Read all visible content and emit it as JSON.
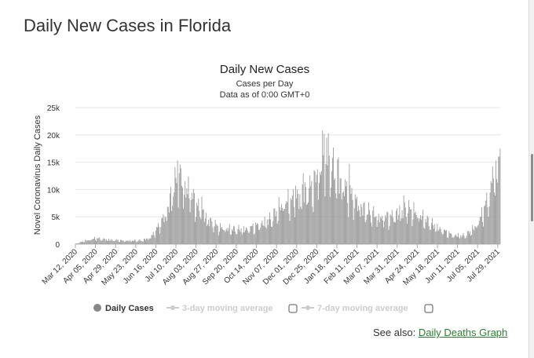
{
  "page_title": "Daily New Cases in Florida",
  "see_also": {
    "prefix": "See also:",
    "link_label": "Daily Deaths Graph"
  },
  "colors": {
    "bar": "#999999",
    "legend_inactive": "#cccccc",
    "link": "#2e7d32",
    "grid": "#e6e6e6"
  },
  "chart_data": {
    "type": "bar",
    "title": "Daily New Cases",
    "subtitle": "Cases per Day",
    "subtitle2": "Data as of 0:00 GMT+0",
    "ylabel": "Novel Coronavirus Daily Cases",
    "xlabel": "",
    "ylim": [
      0,
      25000
    ],
    "yticks": [
      0,
      5000,
      10000,
      15000,
      20000,
      25000
    ],
    "ytick_labels": [
      "0",
      "5k",
      "10k",
      "15k",
      "20k",
      "25k"
    ],
    "x_start": "2020-03-12",
    "x_end": "2021-08-01",
    "x_tick_labels": [
      "Mar 12, 2020",
      "Apr 05, 2020",
      "Apr 29, 2020",
      "May 23, 2020",
      "Jun 16, 2020",
      "Jul 10, 2020",
      "Aug 03, 2020",
      "Aug 27, 2020",
      "Sep 20, 2020",
      "Oct 14, 2020",
      "Nov 07, 2020",
      "Dec 01, 2020",
      "Dec 25, 2020",
      "Jan 18, 2021",
      "Feb 11, 2021",
      "Mar 07, 2021",
      "Mar 31, 2021",
      "Apr 24, 2021",
      "May 18, 2021",
      "Jun 11, 2021",
      "Jul 05, 2021",
      "Jul 29, 2021"
    ],
    "keyframes": [
      [
        "2020-03-12",
        50
      ],
      [
        "2020-03-25",
        700
      ],
      [
        "2020-04-05",
        1100
      ],
      [
        "2020-04-20",
        850
      ],
      [
        "2020-05-10",
        650
      ],
      [
        "2020-05-31",
        700
      ],
      [
        "2020-06-10",
        1300
      ],
      [
        "2020-06-20",
        3500
      ],
      [
        "2020-06-30",
        6500
      ],
      [
        "2020-07-05",
        9500
      ],
      [
        "2020-07-12",
        12500
      ],
      [
        "2020-07-18",
        11000
      ],
      [
        "2020-07-28",
        9500
      ],
      [
        "2020-08-05",
        7000
      ],
      [
        "2020-08-15",
        5000
      ],
      [
        "2020-08-30",
        3200
      ],
      [
        "2020-09-15",
        2800
      ],
      [
        "2020-10-01",
        2800
      ],
      [
        "2020-10-15",
        3500
      ],
      [
        "2020-11-01",
        4800
      ],
      [
        "2020-11-15",
        7800
      ],
      [
        "2020-12-01",
        8500
      ],
      [
        "2020-12-20",
        11000
      ],
      [
        "2021-01-03",
        14500
      ],
      [
        "2021-01-08",
        16000
      ],
      [
        "2021-01-20",
        12500
      ],
      [
        "2021-02-05",
        9000
      ],
      [
        "2021-02-20",
        6500
      ],
      [
        "2021-03-10",
        5000
      ],
      [
        "2021-03-25",
        5200
      ],
      [
        "2021-04-10",
        6800
      ],
      [
        "2021-04-20",
        6200
      ],
      [
        "2021-05-05",
        4500
      ],
      [
        "2021-05-20",
        3000
      ],
      [
        "2021-06-05",
        1700
      ],
      [
        "2021-06-20",
        1600
      ],
      [
        "2021-07-01",
        3000
      ],
      [
        "2021-07-10",
        5500
      ],
      [
        "2021-07-20",
        9500
      ],
      [
        "2021-07-26",
        13000
      ],
      [
        "2021-08-01",
        15500
      ]
    ],
    "peaks": [
      [
        "2020-07-12",
        15300
      ],
      [
        "2020-07-16",
        13900
      ],
      [
        "2020-07-25",
        12400
      ],
      [
        "2020-08-10",
        8700
      ],
      [
        "2020-11-30",
        10700
      ],
      [
        "2020-12-09",
        13000
      ],
      [
        "2020-12-17",
        12600
      ],
      [
        "2020-12-26",
        13700
      ],
      [
        "2021-01-01",
        20800
      ],
      [
        "2021-01-03",
        20200
      ],
      [
        "2021-01-06",
        19500
      ],
      [
        "2021-01-20",
        15900
      ],
      [
        "2021-02-02",
        14700
      ],
      [
        "2021-04-08",
        8900
      ],
      [
        "2021-07-23",
        14200
      ],
      [
        "2021-07-30",
        16000
      ],
      [
        "2021-08-01",
        17500
      ]
    ],
    "series": [
      {
        "name": "Daily Cases"
      }
    ],
    "legend": {
      "placement": "bottom",
      "items": [
        {
          "label": "Daily Cases",
          "active": true
        },
        {
          "label": "3-day moving average",
          "active": false,
          "checked": false
        },
        {
          "label": "7-day moving average",
          "active": false,
          "checked": false
        }
      ]
    },
    "grid": true
  }
}
